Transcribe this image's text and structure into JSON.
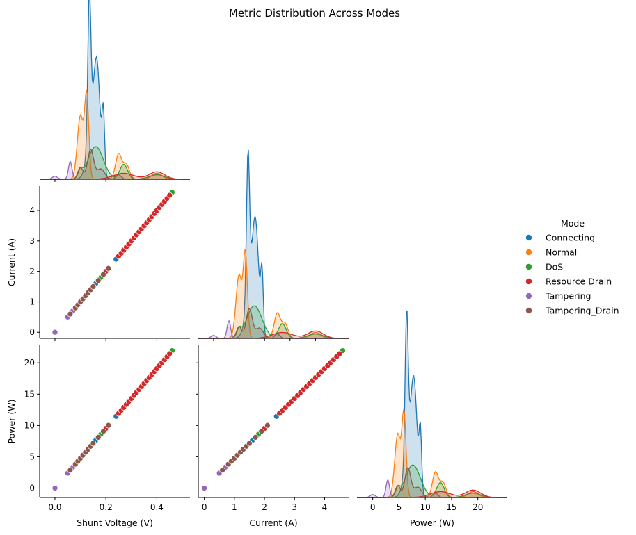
{
  "chart_data": {
    "type": "scatter",
    "title": "Metric Distribution Across Modes",
    "variables": [
      {
        "key": "voltage",
        "label": "Shunt Voltage (V)",
        "range": [
          -0.06,
          0.53
        ],
        "ticks": [
          0.0,
          0.2,
          0.4
        ],
        "tick_labels": [
          "0.0",
          "0.2",
          "0.4"
        ]
      },
      {
        "key": "current",
        "label": "Current (A)",
        "range": [
          -0.2,
          4.8
        ],
        "ticks": [
          0,
          1,
          2,
          3,
          4
        ],
        "tick_labels": [
          "0",
          "1",
          "2",
          "3",
          "4"
        ]
      },
      {
        "key": "power",
        "label": "Power (W)",
        "range": [
          -1.5,
          22.8
        ],
        "ticks": [
          0,
          5,
          10,
          15,
          20
        ],
        "tick_labels": [
          "0",
          "5",
          "10",
          "15",
          "20"
        ]
      }
    ],
    "diag_x_ranges": {
      "voltage": [
        -0.06,
        0.53
      ],
      "current": [
        -0.6,
        5.3
      ],
      "power": [
        -3.0,
        25.6
      ]
    },
    "ratios": {
      "current_per_volt": 10.0,
      "power_per_volt": 47.7
    },
    "legend": {
      "title": "Mode",
      "placement": "right"
    },
    "series": [
      {
        "name": "Connecting",
        "color": "#1f77b4",
        "voltage_points": [
          0.13,
          0.145,
          0.16,
          0.175,
          0.19,
          0.2,
          0.24,
          0.33,
          0.34
        ],
        "kde_peaks": [
          {
            "center": 0.135,
            "height": 1.0,
            "width": 0.006
          },
          {
            "center": 0.165,
            "height": 0.55,
            "width": 0.012
          },
          {
            "center": 0.19,
            "height": 0.4,
            "width": 0.005
          },
          {
            "center": 0.15,
            "height": 0.35,
            "width": 0.02
          },
          {
            "center": 0.25,
            "height": 0.03,
            "width": 0.01
          }
        ]
      },
      {
        "name": "Normal",
        "color": "#ff7f0e",
        "voltage_points": [
          0.09,
          0.11,
          0.125,
          0.26,
          0.27
        ],
        "kde_peaks": [
          {
            "center": 0.1,
            "height": 0.43,
            "width": 0.012
          },
          {
            "center": 0.125,
            "height": 0.55,
            "width": 0.008
          },
          {
            "center": 0.25,
            "height": 0.17,
            "width": 0.012
          },
          {
            "center": 0.28,
            "height": 0.1,
            "width": 0.012
          },
          {
            "center": 0.4,
            "height": 0.04,
            "width": 0.02
          }
        ]
      },
      {
        "name": "DoS",
        "color": "#2ca02c",
        "voltage_points": [
          0.15,
          0.18,
          0.2,
          0.28,
          0.46
        ],
        "kde_peaks": [
          {
            "center": 0.16,
            "height": 0.22,
            "width": 0.03
          },
          {
            "center": 0.1,
            "height": 0.05,
            "width": 0.008
          },
          {
            "center": 0.27,
            "height": 0.1,
            "width": 0.015
          },
          {
            "center": 0.4,
            "height": 0.03,
            "width": 0.03
          }
        ]
      },
      {
        "name": "Resource Drain",
        "color": "#d62728",
        "voltage_points": [
          0.2,
          0.25,
          0.26,
          0.27,
          0.28,
          0.29,
          0.3,
          0.31,
          0.32,
          0.33,
          0.34,
          0.35,
          0.36,
          0.37,
          0.38,
          0.39,
          0.4,
          0.41,
          0.42,
          0.43,
          0.44,
          0.45
        ],
        "kde_peaks": [
          {
            "center": 0.27,
            "height": 0.04,
            "width": 0.04
          },
          {
            "center": 0.4,
            "height": 0.05,
            "width": 0.03
          }
        ]
      },
      {
        "name": "Tampering",
        "color": "#9467bd",
        "voltage_points": [
          0.0,
          0.05,
          0.07,
          0.08
        ],
        "kde_peaks": [
          {
            "center": 0.06,
            "height": 0.12,
            "width": 0.007
          },
          {
            "center": 0.0,
            "height": 0.02,
            "width": 0.01
          }
        ]
      },
      {
        "name": "Tampering_Drain",
        "color": "#8c564b",
        "voltage_points": [
          0.06,
          0.08,
          0.09,
          0.1,
          0.11,
          0.12,
          0.13,
          0.14,
          0.15,
          0.17,
          0.19,
          0.21
        ],
        "kde_peaks": [
          {
            "center": 0.14,
            "height": 0.2,
            "width": 0.012
          },
          {
            "center": 0.1,
            "height": 0.08,
            "width": 0.01
          },
          {
            "center": 0.18,
            "height": 0.07,
            "width": 0.015
          }
        ]
      }
    ]
  }
}
